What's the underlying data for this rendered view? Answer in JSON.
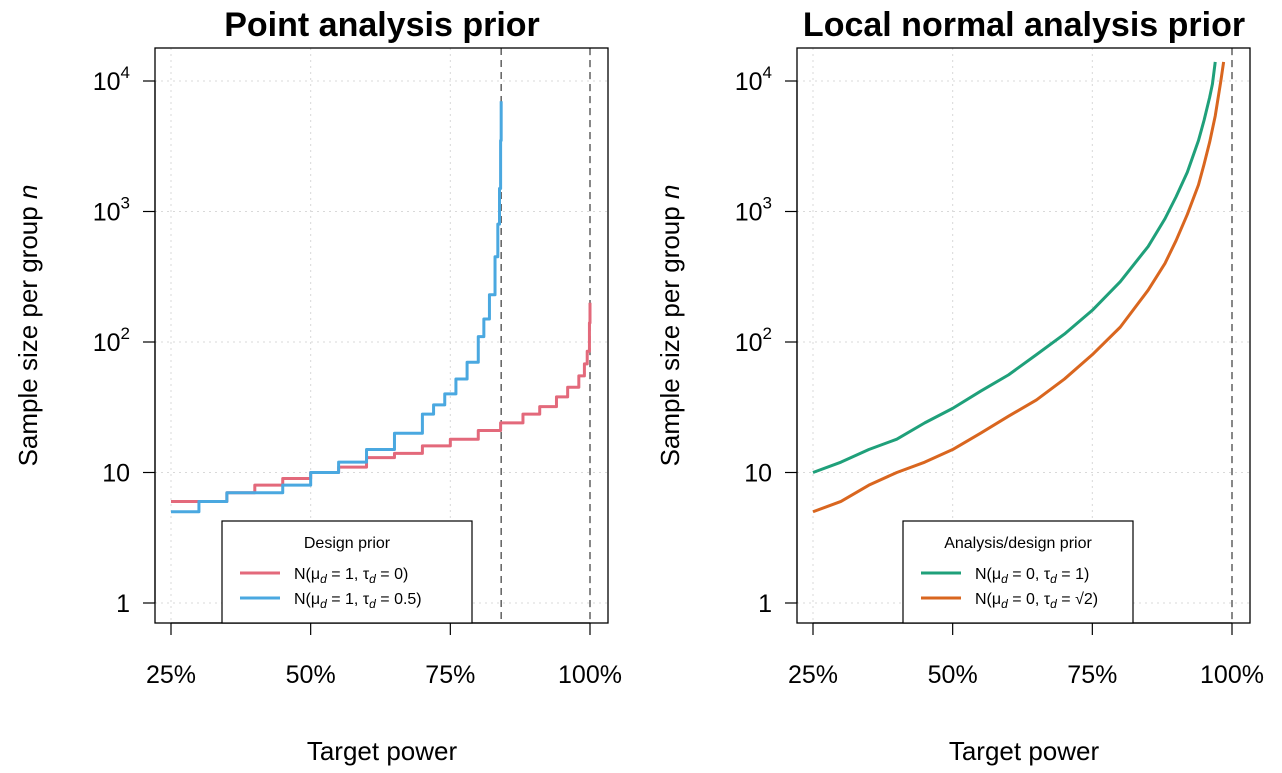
{
  "chart_data": [
    {
      "type": "line",
      "title": "Point analysis prior",
      "xlabel": "Target power",
      "ylabel": "Sample size per group n",
      "x_scale": "linear",
      "y_scale": "log",
      "xlim": [
        0.25,
        1.0
      ],
      "ylim": [
        1,
        10000
      ],
      "x_ticks": [
        0.25,
        0.5,
        0.75,
        1.0
      ],
      "x_tick_labels": [
        "25%",
        "50%",
        "75%",
        "100%"
      ],
      "y_ticks": [
        1,
        10,
        100,
        1000,
        10000
      ],
      "y_tick_labels": [
        {
          "base": "1",
          "exp": ""
        },
        {
          "base": "10",
          "exp": ""
        },
        {
          "base": "10",
          "exp": "2"
        },
        {
          "base": "10",
          "exp": "3"
        },
        {
          "base": "10",
          "exp": "4"
        }
      ],
      "vertical_reference_lines": [
        0.841,
        1.0
      ],
      "grid": true,
      "legend": {
        "title": "Design prior",
        "position": "bottom-center",
        "entries": [
          {
            "pre": "N(μ",
            "sub1": "d",
            "mid": " = 1,  τ",
            "sub2": "d",
            "post": " = 0)",
            "series": 0
          },
          {
            "pre": "N(μ",
            "sub1": "d",
            "mid": " = 1,  τ",
            "sub2": "d",
            "post": " = 0.5)",
            "series": 1
          }
        ]
      },
      "series": [
        {
          "color": "#E3697B",
          "step": true,
          "x": [
            0.25,
            0.3,
            0.35,
            0.4,
            0.45,
            0.5,
            0.55,
            0.6,
            0.65,
            0.7,
            0.75,
            0.8,
            0.84,
            0.88,
            0.91,
            0.94,
            0.96,
            0.98,
            0.99,
            0.995,
            0.999,
            1.0
          ],
          "y": [
            6,
            6,
            7,
            8,
            9,
            10,
            11,
            13,
            14,
            16,
            18,
            21,
            24,
            28,
            32,
            38,
            45,
            55,
            68,
            85,
            140,
            200
          ]
        },
        {
          "color": "#4AA8E0",
          "step": true,
          "x": [
            0.25,
            0.3,
            0.35,
            0.4,
            0.45,
            0.5,
            0.55,
            0.6,
            0.65,
            0.7,
            0.72,
            0.74,
            0.76,
            0.78,
            0.8,
            0.81,
            0.82,
            0.83,
            0.835,
            0.838,
            0.84,
            0.841
          ],
          "y": [
            5,
            6,
            7,
            7,
            8,
            10,
            12,
            15,
            20,
            28,
            33,
            40,
            52,
            70,
            110,
            150,
            230,
            450,
            800,
            1500,
            3500,
            7000
          ]
        }
      ]
    },
    {
      "type": "line",
      "title": "Local normal analysis prior",
      "xlabel": "Target power",
      "ylabel": "Sample size per group n",
      "x_scale": "linear",
      "y_scale": "log",
      "xlim": [
        0.25,
        1.0
      ],
      "ylim": [
        1,
        10000
      ],
      "x_ticks": [
        0.25,
        0.5,
        0.75,
        1.0
      ],
      "x_tick_labels": [
        "25%",
        "50%",
        "75%",
        "100%"
      ],
      "y_ticks": [
        1,
        10,
        100,
        1000,
        10000
      ],
      "y_tick_labels": [
        {
          "base": "1",
          "exp": ""
        },
        {
          "base": "10",
          "exp": ""
        },
        {
          "base": "10",
          "exp": "2"
        },
        {
          "base": "10",
          "exp": "3"
        },
        {
          "base": "10",
          "exp": "4"
        }
      ],
      "vertical_reference_lines": [
        1.0
      ],
      "grid": true,
      "legend": {
        "title": "Analysis/design prior",
        "position": "bottom-center",
        "entries": [
          {
            "pre": "N(μ",
            "sub1": "d",
            "mid": " = 0,  τ",
            "sub2": "d",
            "post": " = 1)",
            "series": 0
          },
          {
            "pre": "N(μ",
            "sub1": "d",
            "mid": " = 0,  τ",
            "sub2": "d",
            "post": " = √2)",
            "series": 1
          }
        ]
      },
      "series": [
        {
          "color": "#1FA07A",
          "step": false,
          "x": [
            0.25,
            0.3,
            0.35,
            0.4,
            0.45,
            0.5,
            0.55,
            0.6,
            0.65,
            0.7,
            0.75,
            0.8,
            0.85,
            0.88,
            0.9,
            0.92,
            0.94,
            0.95,
            0.96,
            0.965,
            0.97
          ],
          "y": [
            10,
            12,
            15,
            18,
            24,
            31,
            42,
            56,
            80,
            115,
            175,
            290,
            540,
            880,
            1300,
            2000,
            3500,
            5000,
            7500,
            9500,
            14000
          ]
        },
        {
          "color": "#D9661F",
          "step": false,
          "x": [
            0.25,
            0.3,
            0.35,
            0.4,
            0.45,
            0.5,
            0.55,
            0.6,
            0.65,
            0.7,
            0.75,
            0.8,
            0.85,
            0.88,
            0.9,
            0.92,
            0.94,
            0.95,
            0.96,
            0.97,
            0.98,
            0.985
          ],
          "y": [
            5,
            6,
            8,
            10,
            12,
            15,
            20,
            27,
            36,
            52,
            80,
            130,
            250,
            400,
            600,
            950,
            1600,
            2300,
            3400,
            5400,
            10000,
            14000
          ]
        }
      ]
    }
  ]
}
